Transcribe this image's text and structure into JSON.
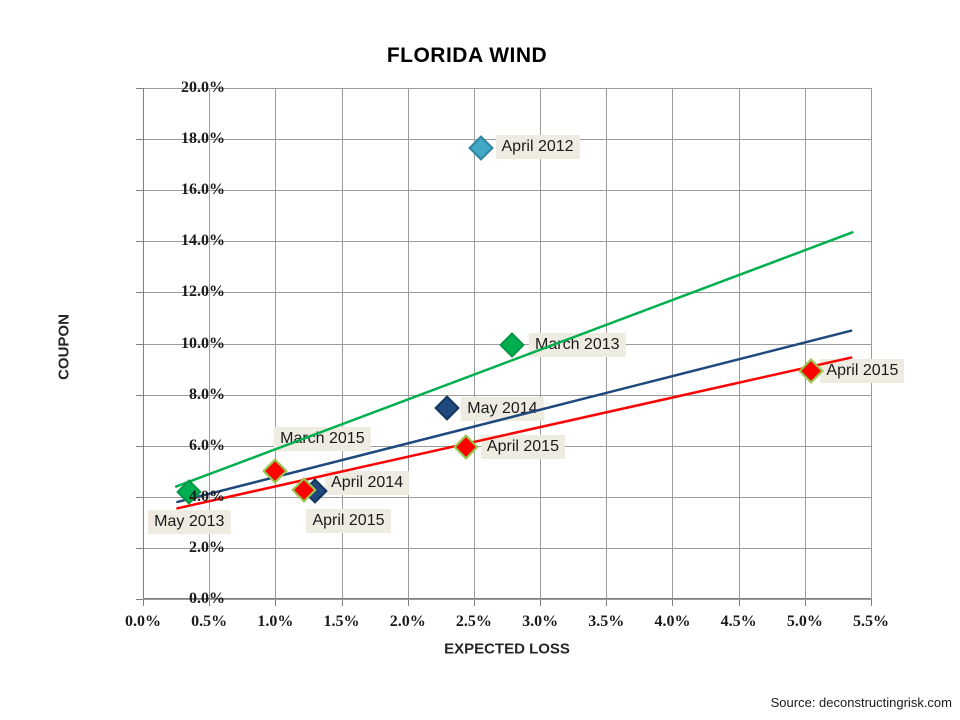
{
  "page": {
    "source_note": "Source: deconstructingrisk.com"
  },
  "chart_data": {
    "type": "scatter",
    "title": "FLORIDA WIND",
    "xlabel": "EXPECTED LOSS",
    "ylabel": "COUPON",
    "xlim": [
      0,
      5.5
    ],
    "ylim": [
      0,
      20
    ],
    "x_ticks": [
      0,
      0.5,
      1.0,
      1.5,
      2.0,
      2.5,
      3.0,
      3.5,
      4.0,
      4.5,
      5.0,
      5.5
    ],
    "x_tick_labels": [
      "0.0%",
      "0.5%",
      "1.0%",
      "1.5%",
      "2.0%",
      "2.5%",
      "3.0%",
      "3.5%",
      "4.0%",
      "4.5%",
      "5.0%",
      "5.5%"
    ],
    "y_ticks": [
      0,
      2,
      4,
      6,
      8,
      10,
      12,
      14,
      16,
      18,
      20
    ],
    "y_tick_labels": [
      "0.0%",
      "2.0%",
      "4.0%",
      "6.0%",
      "8.0%",
      "10.0%",
      "12.0%",
      "14.0%",
      "16.0%",
      "18.0%",
      "20.0%"
    ],
    "grid": true,
    "legend": "none",
    "colors": {
      "grid": "#9c9c9c",
      "axis": "#7f7f7f",
      "label_bg": "#EEECE1",
      "label_text": "#1a1a1a",
      "teal": "#41A9C5",
      "green": "#00B050",
      "navy": "#1F497D",
      "red": "#FF0000",
      "red_point_border": "#92D050"
    },
    "points": [
      {
        "label": "May 2013",
        "x": 0.35,
        "y": 4.2,
        "fill": "#00B050",
        "border": "#089447",
        "label_offset": [
          0,
          30
        ]
      },
      {
        "label": "March 2015",
        "x": 1.0,
        "y": 5.0,
        "fill": "#FF0000",
        "border": "#92D050",
        "label_offset": [
          47,
          -32
        ]
      },
      {
        "label": "April 2014",
        "x": 1.3,
        "y": 4.22,
        "fill": "#1F497D",
        "border": "#17375E",
        "label_offset": [
          52,
          -8
        ]
      },
      {
        "label": "April 2015",
        "x": 1.22,
        "y": 4.27,
        "fill": "#FF0000",
        "border": "#92D050",
        "label_offset": [
          44,
          31
        ]
      },
      {
        "label": "April 2015",
        "x": 2.44,
        "y": 5.95,
        "fill": "#FF0000",
        "border": "#92D050",
        "label_offset": [
          57,
          0
        ]
      },
      {
        "label": "May 2014",
        "x": 2.3,
        "y": 7.48,
        "fill": "#1F497D",
        "border": "#17375E",
        "label_offset": [
          55,
          1
        ]
      },
      {
        "label": "March 2013",
        "x": 2.79,
        "y": 9.95,
        "fill": "#00B050",
        "border": "#089447",
        "label_offset": [
          65,
          0
        ]
      },
      {
        "label": "April 2012",
        "x": 2.55,
        "y": 17.65,
        "fill": "#41A9C5",
        "border": "#2E86A0",
        "label_offset": [
          57,
          -1
        ]
      },
      {
        "label": "April 2015",
        "x": 5.05,
        "y": 8.92,
        "fill": "#FF0000",
        "border": "#92D050",
        "label_offset": [
          51,
          0
        ]
      }
    ],
    "trend_lines": [
      {
        "name": "green-trend",
        "color": "#00B050",
        "x1": 0.25,
        "y1": 4.4,
        "x2": 5.36,
        "y2": 14.35
      },
      {
        "name": "navy-trend",
        "color": "#1F497D",
        "x1": 0.26,
        "y1": 3.8,
        "x2": 5.35,
        "y2": 10.5
      },
      {
        "name": "red-trend",
        "color": "#FF0000",
        "x1": 0.26,
        "y1": 3.55,
        "x2": 5.35,
        "y2": 9.45
      }
    ]
  }
}
